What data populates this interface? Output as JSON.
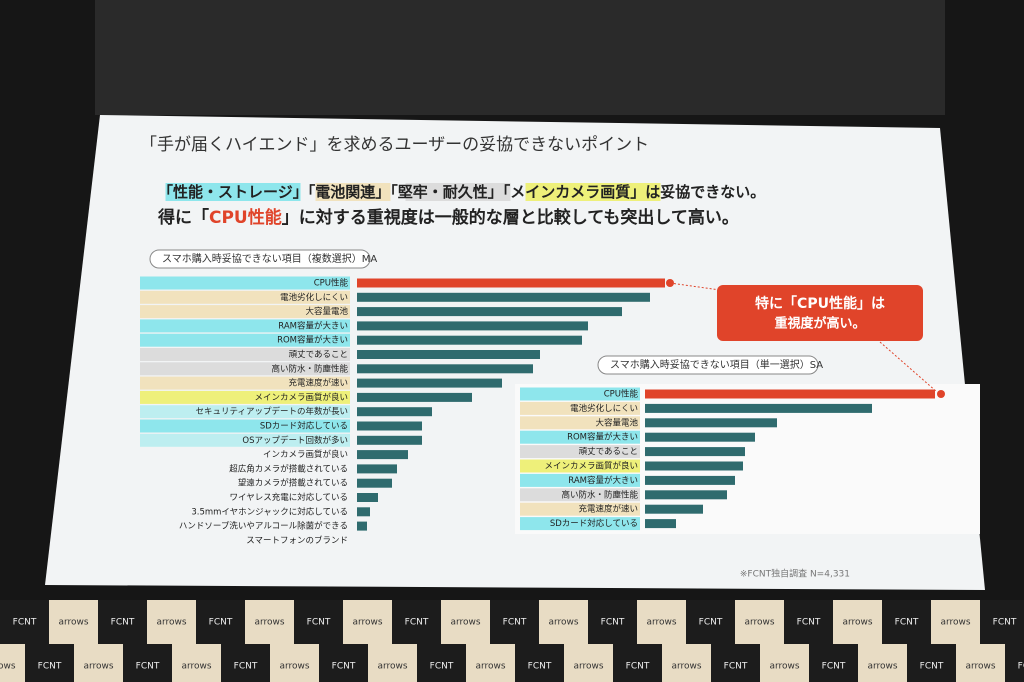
{
  "slide": {
    "title": "「手が届くハイエンド」を求めるユーザーの妥協できないポイント",
    "line1": [
      {
        "text": "「性能・ストレージ」",
        "bg": "#8ee6ec"
      },
      {
        "text": "「電池関連」",
        "bg": "#f1e2bd"
      },
      {
        "text": "「堅牢・耐久性」",
        "bg": "#dcdcdc"
      },
      {
        "text": "「メインカメラ画質」",
        "bg": "#eef07a"
      },
      {
        "text": "は妥協できない。",
        "bg": null
      }
    ],
    "line2": [
      {
        "text": "得に「",
        "color": "#222222"
      },
      {
        "text": "CPU性能",
        "color": "#e0442a"
      },
      {
        "text": "」に対する重視度は一般的な層と比較しても突出して高い。",
        "color": "#222222"
      }
    ],
    "callout": [
      "特に「CPU性能」は",
      "重視度が高い。"
    ],
    "footnote": "※FCNT独自調査 N=4,331"
  },
  "backdrop": {
    "logos": [
      "FCNT",
      "arrows"
    ]
  },
  "chart_data": [
    {
      "type": "bar",
      "orientation": "horizontal",
      "title": "スマホ購入時妥協できない項目（複数選択）MA",
      "categories": [
        "CPU性能",
        "電池劣化しにくい",
        "大容量電池",
        "RAM容量が大きい",
        "ROM容量が大きい",
        "頑丈であること",
        "高い防水・防塵性能",
        "充電速度が速い",
        "メインカメラ画質が良い",
        "セキュリティアップデートの年数が長い",
        "SDカード対応している",
        "OSアップデート回数が多い",
        "インカメラ画質が良い",
        "超広角カメラが搭載されている",
        "望遠カメラが搭載されている",
        "ワイヤレス充電に対応している",
        "3.5mmイヤホンジャックに対応している",
        "ハンドソープ洗いやアルコール除菌ができる",
        "スマートフォンのブランド"
      ],
      "values": [
        308,
        293,
        265,
        231,
        225,
        183,
        176,
        145,
        115,
        75,
        65,
        65,
        51,
        40,
        35,
        21,
        13,
        10,
        0
      ],
      "colors": [
        "#e0442a",
        "#2f6b6e",
        "#2f6b6e",
        "#2f6b6e",
        "#2f6b6e",
        "#2f6b6e",
        "#2f6b6e",
        "#2f6b6e",
        "#2f6b6e",
        "#2f6b6e",
        "#2f6b6e",
        "#2f6b6e",
        "#2f6b6e",
        "#2f6b6e",
        "#2f6b6e",
        "#2f6b6e",
        "#2f6b6e",
        "#2f6b6e",
        "#2f6b6e"
      ],
      "label_colors": [
        "#8ee6ec",
        "#f1e2bd",
        "#f1e2bd",
        "#8ee6ec",
        "#8ee6ec",
        "#dcdcdc",
        "#dcdcdc",
        "#f1e2bd",
        "#eef07a",
        "#bdeef0",
        "#8ee6ec",
        "#bdeef0",
        null,
        null,
        null,
        null,
        null,
        null,
        null
      ],
      "xlim": [
        0,
        310
      ]
    },
    {
      "type": "bar",
      "orientation": "horizontal",
      "title": "スマホ購入時妥協できない項目（単一選択）SA",
      "categories": [
        "CPU性能",
        "電池劣化しにくい",
        "大容量電池",
        "ROM容量が大きい",
        "頑丈であること",
        "メインカメラ画質が良い",
        "RAM容量が大きい",
        "高い防水・防塵性能",
        "充電速度が速い",
        "SDカード対応している"
      ],
      "values": [
        290,
        227,
        132,
        110,
        100,
        98,
        90,
        82,
        58,
        31
      ],
      "colors": [
        "#e0442a",
        "#2f6b6e",
        "#2f6b6e",
        "#2f6b6e",
        "#2f6b6e",
        "#2f6b6e",
        "#2f6b6e",
        "#2f6b6e",
        "#2f6b6e",
        "#2f6b6e"
      ],
      "label_colors": [
        "#8ee6ec",
        "#f1e2bd",
        "#f1e2bd",
        "#8ee6ec",
        "#dcdcdc",
        "#eef07a",
        "#8ee6ec",
        "#dcdcdc",
        "#f1e2bd",
        "#8ee6ec"
      ],
      "xlim": [
        0,
        310
      ]
    }
  ]
}
